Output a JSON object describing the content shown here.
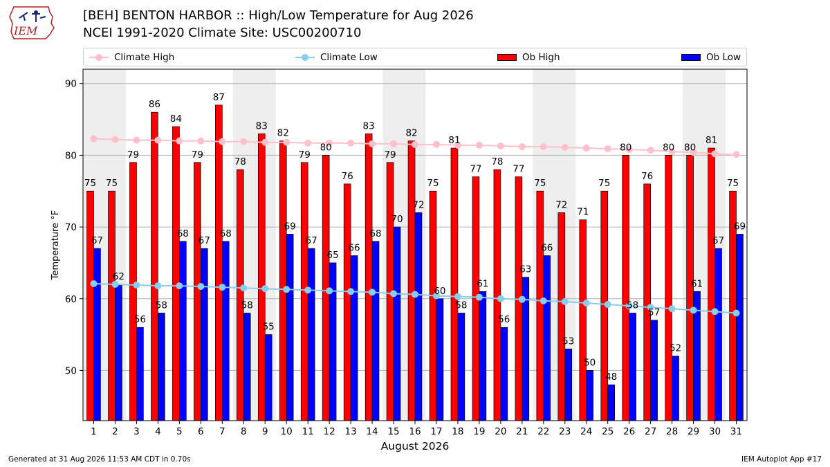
{
  "logo_text": "IEM",
  "title_line1": "[BEH] BENTON HARBOR :: High/Low Temperature for Aug 2026",
  "title_line2": "NCEI 1991-2020 Climate Site: USC00200710",
  "legend": {
    "climate_high": "Climate High",
    "climate_low": "Climate Low",
    "ob_high": "Ob High",
    "ob_low": "Ob Low"
  },
  "footer_left": "Generated at 31 Aug 2026 11:53 AM CDT in 0.70s",
  "footer_right": "IEM Autoplot App #17",
  "colors": {
    "ob_high": "#ff0000",
    "ob_low": "#0000ff",
    "climate_high": "#ffc0cb",
    "climate_low": "#87ceeb",
    "weekend_shade": "#eeeeee",
    "grid": "#b0b0b0"
  },
  "chart_data": {
    "type": "bar",
    "xlabel": "August 2026",
    "ylabel": "Temperature °F",
    "ylim": [
      43,
      92
    ],
    "yticks": [
      50,
      60,
      70,
      80,
      90
    ],
    "grid": "horizontal",
    "legend_position": "top",
    "categories": [
      "1",
      "2",
      "3",
      "4",
      "5",
      "6",
      "7",
      "8",
      "9",
      "10",
      "11",
      "12",
      "13",
      "14",
      "15",
      "16",
      "17",
      "18",
      "19",
      "20",
      "21",
      "22",
      "23",
      "24",
      "25",
      "26",
      "27",
      "28",
      "29",
      "30",
      "31"
    ],
    "shaded_days": [
      [
        1,
        2
      ],
      [
        8,
        9
      ],
      [
        15,
        16
      ],
      [
        22,
        23
      ],
      [
        29,
        30
      ]
    ],
    "series": [
      {
        "name": "Ob High",
        "kind": "bar",
        "values": [
          75,
          75,
          79,
          86,
          84,
          79,
          87,
          78,
          83,
          82,
          79,
          80,
          76,
          83,
          79,
          82,
          75,
          81,
          77,
          78,
          77,
          75,
          72,
          71,
          75,
          80,
          76,
          80,
          80,
          81,
          75
        ]
      },
      {
        "name": "Ob Low",
        "kind": "bar",
        "values": [
          67,
          62,
          56,
          58,
          68,
          67,
          68,
          58,
          55,
          69,
          67,
          65,
          66,
          68,
          70,
          72,
          60,
          58,
          61,
          56,
          63,
          66,
          53,
          50,
          48,
          58,
          57,
          52,
          61,
          67,
          69
        ]
      },
      {
        "name": "Climate High",
        "kind": "line",
        "values": [
          82.3,
          82.2,
          82.1,
          82.1,
          82.0,
          82.0,
          81.9,
          81.9,
          81.8,
          81.8,
          81.7,
          81.7,
          81.7,
          81.6,
          81.6,
          81.5,
          81.5,
          81.4,
          81.4,
          81.3,
          81.2,
          81.2,
          81.1,
          81.0,
          80.9,
          80.8,
          80.7,
          80.5,
          80.4,
          80.2,
          80.1
        ]
      },
      {
        "name": "Climate Low",
        "kind": "line",
        "values": [
          62.1,
          62.0,
          61.9,
          61.8,
          61.8,
          61.7,
          61.6,
          61.5,
          61.4,
          61.3,
          61.2,
          61.1,
          61.0,
          60.9,
          60.7,
          60.6,
          60.4,
          60.3,
          60.2,
          60.0,
          59.9,
          59.7,
          59.6,
          59.4,
          59.2,
          59.0,
          58.8,
          58.6,
          58.4,
          58.2,
          58.0
        ]
      }
    ]
  }
}
